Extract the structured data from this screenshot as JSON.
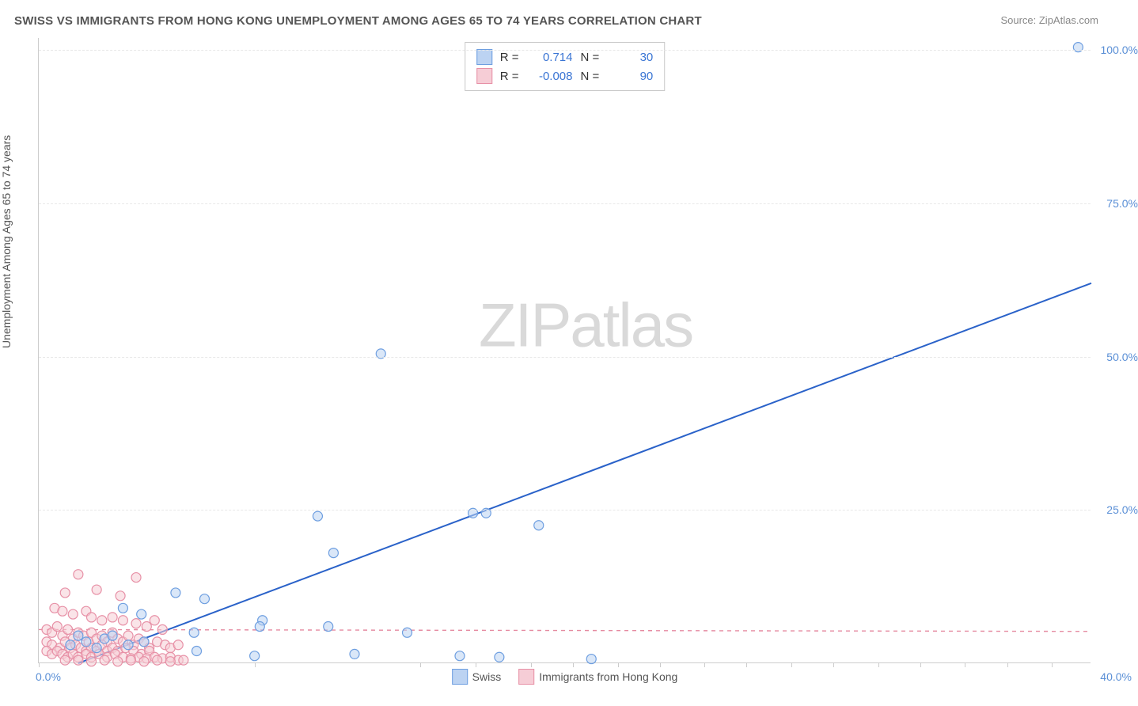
{
  "title": "SWISS VS IMMIGRANTS FROM HONG KONG UNEMPLOYMENT AMONG AGES 65 TO 74 YEARS CORRELATION CHART",
  "source_prefix": "Source: ",
  "source_name": "ZipAtlas.com",
  "ylabel": "Unemployment Among Ages 65 to 74 years",
  "watermark": "ZIPatlas",
  "chart": {
    "type": "scatter",
    "xlim": [
      0,
      40
    ],
    "ylim": [
      0,
      102
    ],
    "x_ticks": [
      0,
      10,
      20,
      30,
      40
    ],
    "x_tick_labels": {
      "0": "0.0%",
      "40": "40.0%"
    },
    "y_ticks": [
      25,
      50,
      75,
      100
    ],
    "y_tick_labels": {
      "25": "25.0%",
      "50": "50.0%",
      "75": "75.0%",
      "100": "100.0%"
    },
    "grid_color": "#e8e8e8",
    "border_color": "#cccccc",
    "background_color": "#ffffff",
    "x_visible_tick_positions": [
      0,
      8.2,
      14.5,
      16.6,
      18.7,
      20.3,
      22.0,
      23.6,
      25.3,
      26.9,
      28.6,
      30.2,
      31.9,
      33.5,
      35.2,
      36.8,
      38.5
    ],
    "series": [
      {
        "name": "Swiss",
        "label": "Swiss",
        "color_fill": "#bcd3f2",
        "color_stroke": "#6d9ee0",
        "swatch_fill": "#bcd3f2",
        "swatch_border": "#6d9ee0",
        "marker_radius": 6,
        "fill_opacity": 0.55,
        "trend": {
          "x1": 1.5,
          "y1": 0,
          "x2": 40,
          "y2": 62,
          "stroke": "#2a62c9",
          "dashed": false
        },
        "corr": {
          "R_label": "R =",
          "R": "0.714",
          "N_label": "N =",
          "N": "30"
        },
        "points": [
          [
            39.5,
            100.5
          ],
          [
            13.0,
            50.5
          ],
          [
            16.5,
            24.5
          ],
          [
            17.0,
            24.5
          ],
          [
            10.6,
            24.0
          ],
          [
            19.0,
            22.5
          ],
          [
            11.2,
            18.0
          ],
          [
            5.2,
            11.5
          ],
          [
            6.3,
            10.5
          ],
          [
            3.2,
            9.0
          ],
          [
            3.9,
            8.0
          ],
          [
            8.5,
            7.0
          ],
          [
            8.4,
            6.0
          ],
          [
            11.0,
            6.0
          ],
          [
            14.0,
            5.0
          ],
          [
            1.5,
            4.5
          ],
          [
            2.5,
            4.0
          ],
          [
            5.9,
            5.0
          ],
          [
            4.0,
            3.5
          ],
          [
            2.8,
            4.5
          ],
          [
            3.4,
            3.0
          ],
          [
            6.0,
            2.0
          ],
          [
            8.2,
            1.2
          ],
          [
            12.0,
            1.5
          ],
          [
            16.0,
            1.2
          ],
          [
            17.5,
            1.0
          ],
          [
            21.0,
            0.7
          ],
          [
            1.2,
            3.0
          ],
          [
            1.8,
            3.5
          ],
          [
            2.2,
            2.5
          ]
        ]
      },
      {
        "name": "Immigrants from Hong Kong",
        "label": "Immigrants from Hong Kong",
        "color_fill": "#f6cdd6",
        "color_stroke": "#e790a6",
        "swatch_fill": "#f6cdd6",
        "swatch_border": "#e790a6",
        "marker_radius": 6,
        "fill_opacity": 0.55,
        "trend": {
          "x1": 0,
          "y1": 5.5,
          "x2": 40,
          "y2": 5.2,
          "stroke": "#e58aa0",
          "dashed": true
        },
        "corr": {
          "R_label": "R =",
          "R": "-0.008",
          "N_label": "N =",
          "N": "90"
        },
        "points": [
          [
            1.5,
            14.5
          ],
          [
            3.7,
            14.0
          ],
          [
            2.2,
            12.0
          ],
          [
            3.1,
            11.0
          ],
          [
            1.0,
            11.5
          ],
          [
            0.6,
            9.0
          ],
          [
            0.9,
            8.5
          ],
          [
            1.3,
            8.0
          ],
          [
            1.8,
            8.5
          ],
          [
            2.0,
            7.5
          ],
          [
            2.4,
            7.0
          ],
          [
            2.8,
            7.5
          ],
          [
            3.2,
            7.0
          ],
          [
            3.7,
            6.5
          ],
          [
            4.1,
            6.0
          ],
          [
            4.4,
            7.0
          ],
          [
            4.7,
            5.5
          ],
          [
            0.3,
            5.5
          ],
          [
            0.5,
            5.0
          ],
          [
            0.7,
            6.0
          ],
          [
            0.9,
            4.5
          ],
          [
            1.1,
            5.5
          ],
          [
            1.3,
            4.0
          ],
          [
            1.5,
            5.0
          ],
          [
            1.7,
            4.5
          ],
          [
            1.9,
            3.5
          ],
          [
            2.0,
            5.0
          ],
          [
            2.2,
            4.0
          ],
          [
            2.4,
            4.5
          ],
          [
            2.6,
            3.5
          ],
          [
            2.8,
            5.0
          ],
          [
            3.0,
            4.0
          ],
          [
            3.2,
            3.5
          ],
          [
            3.4,
            4.5
          ],
          [
            3.6,
            3.0
          ],
          [
            3.8,
            4.0
          ],
          [
            4.0,
            3.5
          ],
          [
            4.2,
            2.5
          ],
          [
            4.5,
            3.5
          ],
          [
            4.8,
            3.0
          ],
          [
            5.0,
            2.5
          ],
          [
            5.3,
            3.0
          ],
          [
            0.3,
            3.5
          ],
          [
            0.5,
            3.0
          ],
          [
            0.8,
            2.5
          ],
          [
            1.0,
            3.5
          ],
          [
            1.2,
            2.5
          ],
          [
            1.4,
            3.0
          ],
          [
            1.6,
            2.5
          ],
          [
            1.8,
            2.0
          ],
          [
            2.0,
            2.5
          ],
          [
            2.2,
            2.0
          ],
          [
            2.4,
            3.0
          ],
          [
            2.6,
            2.0
          ],
          [
            2.8,
            2.5
          ],
          [
            3.0,
            2.0
          ],
          [
            3.3,
            2.5
          ],
          [
            3.6,
            2.0
          ],
          [
            3.9,
            1.5
          ],
          [
            4.2,
            2.0
          ],
          [
            0.3,
            2.0
          ],
          [
            0.5,
            1.5
          ],
          [
            0.7,
            2.0
          ],
          [
            0.9,
            1.5
          ],
          [
            1.1,
            1.0
          ],
          [
            1.3,
            1.5
          ],
          [
            1.5,
            1.0
          ],
          [
            1.8,
            1.5
          ],
          [
            2.0,
            1.0
          ],
          [
            2.3,
            1.5
          ],
          [
            2.6,
            1.0
          ],
          [
            2.9,
            1.5
          ],
          [
            3.2,
            1.0
          ],
          [
            3.5,
            0.8
          ],
          [
            3.8,
            1.0
          ],
          [
            4.1,
            0.8
          ],
          [
            4.4,
            1.0
          ],
          [
            4.7,
            0.8
          ],
          [
            5.0,
            1.0
          ],
          [
            5.3,
            0.5
          ],
          [
            1.0,
            0.5
          ],
          [
            1.5,
            0.5
          ],
          [
            2.0,
            0.3
          ],
          [
            2.5,
            0.5
          ],
          [
            3.0,
            0.3
          ],
          [
            3.5,
            0.5
          ],
          [
            4.0,
            0.3
          ],
          [
            4.5,
            0.5
          ],
          [
            5.0,
            0.3
          ],
          [
            5.5,
            0.5
          ]
        ]
      }
    ]
  },
  "colors": {
    "title": "#555555",
    "source": "#888888",
    "axis_label": "#555555",
    "tick_label_blue": "#5a8fd6",
    "corr_value": "#3a75d4",
    "watermark": "#d9d9d9"
  },
  "fonts": {
    "title_size_pt": 11,
    "axis_label_size_pt": 11,
    "tick_label_size_pt": 11,
    "legend_size_pt": 11
  }
}
